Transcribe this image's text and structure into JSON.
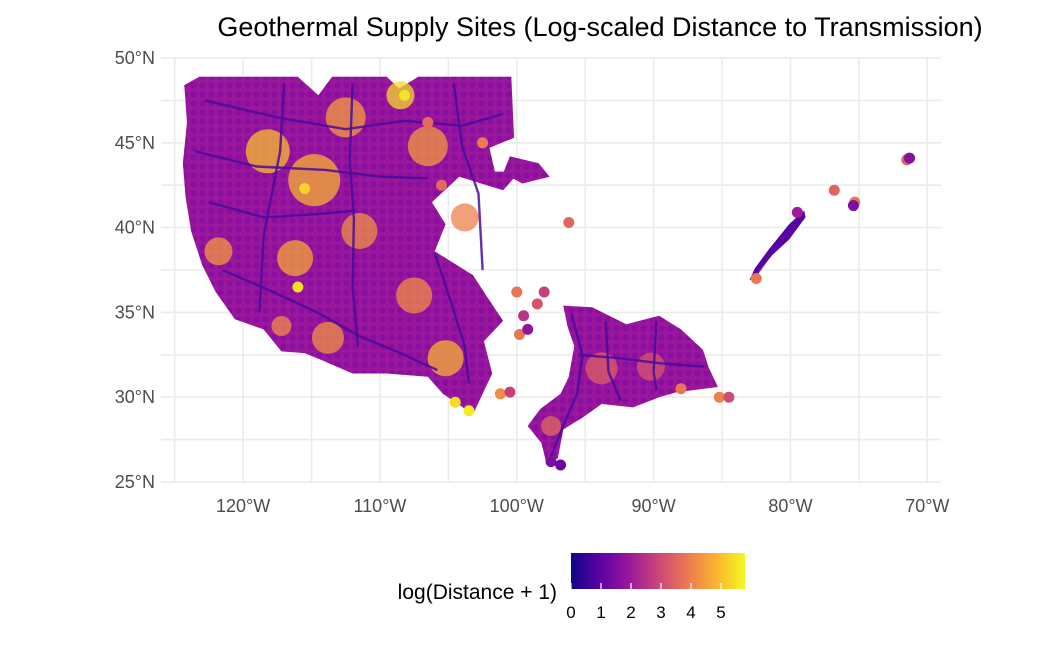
{
  "title": "Geothermal Supply Sites (Log-scaled Distance to Transmission)",
  "colors": {
    "palette": [
      "#0d0887",
      "#5b02a3",
      "#9a179b",
      "#cb4678",
      "#eb7852",
      "#fbb32f",
      "#f0f921"
    ],
    "grid": "#ebebeb",
    "tick_text": "#4d4d4d"
  },
  "axes": {
    "x": {
      "ticks": [
        "120°W",
        "110°W",
        "100°W",
        "90°W",
        "80°W",
        "70°W"
      ],
      "values": [
        -120,
        -110,
        -100,
        -90,
        -80,
        -70
      ],
      "range": [
        -126,
        -69
      ]
    },
    "y": {
      "ticks": [
        "25°N",
        "30°N",
        "35°N",
        "40°N",
        "45°N",
        "50°N"
      ],
      "values": [
        25,
        30,
        35,
        40,
        45,
        50
      ],
      "range": [
        25,
        50
      ]
    }
  },
  "legend": {
    "title": "log(Distance + 1)",
    "ticks": [
      "0",
      "1",
      "2",
      "3",
      "4",
      "5"
    ],
    "values": [
      0,
      1,
      2,
      3,
      4,
      5
    ],
    "range": [
      0,
      5.8
    ]
  },
  "chart_data": {
    "type": "scatter",
    "title": "Geothermal Supply Sites (Log-scaled Distance to Transmission)",
    "xlabel": "",
    "ylabel": "",
    "xlim": [
      -126,
      -69
    ],
    "ylim": [
      25,
      50
    ],
    "color_variable": "log(Distance + 1)",
    "color_range": [
      0,
      5.8
    ],
    "grid": true,
    "legend_position": "bottom",
    "regions": [
      {
        "region": "western-us",
        "lon": [
          -124,
          -101
        ],
        "lat": [
          31,
          49
        ]
      },
      {
        "region": "gulf-coast",
        "lon": [
          -98,
          -86
        ],
        "lat": [
          26,
          35
        ]
      },
      {
        "region": "appalachian",
        "lon": [
          -83,
          -79
        ],
        "lat": [
          37,
          41
        ]
      }
    ],
    "points": [
      {
        "lon": -103.5,
        "lat": 29.2,
        "value": 5.6
      },
      {
        "lon": -104.5,
        "lat": 29.7,
        "value": 5.4
      },
      {
        "lon": -108.2,
        "lat": 47.8,
        "value": 5.5
      },
      {
        "lon": -115.5,
        "lat": 42.3,
        "value": 5.3
      },
      {
        "lon": -116.0,
        "lat": 36.5,
        "value": 5.4
      },
      {
        "lon": -96.2,
        "lat": 40.3,
        "value": 3.5
      },
      {
        "lon": -97.5,
        "lat": 26.2,
        "value": 1.5
      },
      {
        "lon": -100.0,
        "lat": 36.2,
        "value": 3.8
      },
      {
        "lon": -98.5,
        "lat": 35.5,
        "value": 3.2
      },
      {
        "lon": -99.5,
        "lat": 34.8,
        "value": 2.5
      },
      {
        "lon": -99.8,
        "lat": 33.7,
        "value": 3.8
      },
      {
        "lon": -99.2,
        "lat": 34.0,
        "value": 1.8
      },
      {
        "lon": -98.0,
        "lat": 36.2,
        "value": 2.8
      },
      {
        "lon": -101.2,
        "lat": 30.2,
        "value": 4.2
      },
      {
        "lon": -100.5,
        "lat": 30.3,
        "value": 2.8
      },
      {
        "lon": -85.2,
        "lat": 30.0,
        "value": 4.0
      },
      {
        "lon": -84.5,
        "lat": 30.0,
        "value": 3.0
      },
      {
        "lon": -88.0,
        "lat": 30.5,
        "value": 3.8
      },
      {
        "lon": -76.8,
        "lat": 42.2,
        "value": 3.5
      },
      {
        "lon": -75.3,
        "lat": 41.5,
        "value": 3.8
      },
      {
        "lon": -75.4,
        "lat": 41.3,
        "value": 1.5
      },
      {
        "lon": -71.5,
        "lat": 44.0,
        "value": 3.4
      },
      {
        "lon": -71.3,
        "lat": 44.1,
        "value": 1.6
      },
      {
        "lon": -79.5,
        "lat": 40.9,
        "value": 2.0
      },
      {
        "lon": -82.5,
        "lat": 37.0,
        "value": 3.8
      },
      {
        "lon": -96.8,
        "lat": 26.0,
        "value": 1.2
      },
      {
        "lon": -106.5,
        "lat": 46.2,
        "value": 3.6
      },
      {
        "lon": -102.5,
        "lat": 45.0,
        "value": 3.9
      },
      {
        "lon": -105.5,
        "lat": 42.5,
        "value": 3.6
      }
    ]
  }
}
